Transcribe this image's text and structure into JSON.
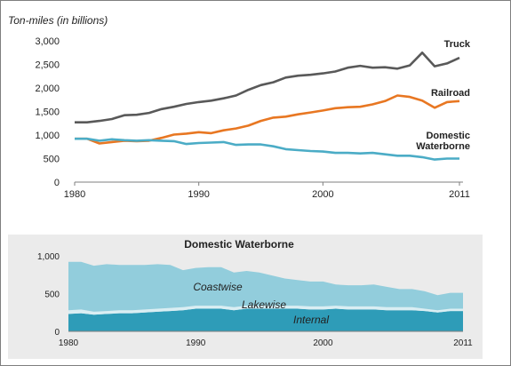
{
  "chart_data": [
    {
      "type": "line",
      "title": "",
      "ylabel": "Ton-miles (in billions)",
      "xlabel": "",
      "x": [
        1980,
        1981,
        1982,
        1983,
        1984,
        1985,
        1986,
        1987,
        1988,
        1989,
        1990,
        1991,
        1992,
        1993,
        1994,
        1995,
        1996,
        1997,
        1998,
        1999,
        2000,
        2001,
        2002,
        2003,
        2004,
        2005,
        2006,
        2007,
        2008,
        2009,
        2010,
        2011
      ],
      "xticks": [
        "1980",
        "1990",
        "2000",
        "2011"
      ],
      "xtick_values": [
        1980,
        1990,
        2000,
        2011
      ],
      "ylim": [
        0,
        3000
      ],
      "yticks": [
        "0",
        "500",
        "1,000",
        "1,500",
        "2,000",
        "2,500",
        "3,000"
      ],
      "ytick_values": [
        0,
        500,
        1000,
        1500,
        2000,
        2500,
        3000
      ],
      "grid": false,
      "series": [
        {
          "name": "Truck",
          "color": "#595959",
          "values": [
            1270,
            1270,
            1300,
            1340,
            1420,
            1430,
            1470,
            1550,
            1600,
            1660,
            1700,
            1730,
            1780,
            1840,
            1960,
            2060,
            2120,
            2220,
            2260,
            2280,
            2310,
            2350,
            2430,
            2470,
            2430,
            2440,
            2410,
            2480,
            2750,
            2460,
            2520,
            2640
          ]
        },
        {
          "name": "Railroad",
          "color": "#e87722",
          "values": [
            920,
            920,
            820,
            850,
            880,
            870,
            880,
            940,
            1010,
            1030,
            1060,
            1040,
            1100,
            1140,
            1200,
            1300,
            1370,
            1390,
            1440,
            1480,
            1520,
            1570,
            1590,
            1600,
            1650,
            1720,
            1840,
            1810,
            1730,
            1580,
            1700,
            1720
          ]
        },
        {
          "name": "Domestic Waterborne",
          "label_lines": [
            "Domestic",
            "Waterborne"
          ],
          "color": "#4bacc6",
          "values": [
            920,
            920,
            880,
            910,
            890,
            880,
            890,
            880,
            870,
            810,
            830,
            840,
            850,
            790,
            800,
            800,
            760,
            700,
            680,
            660,
            650,
            620,
            620,
            610,
            620,
            590,
            560,
            560,
            530,
            480,
            500,
            500
          ]
        }
      ]
    },
    {
      "type": "area",
      "title": "Domestic Waterborne",
      "xlabel": "",
      "ylabel": "",
      "x": [
        1980,
        1981,
        1982,
        1983,
        1984,
        1985,
        1986,
        1987,
        1988,
        1989,
        1990,
        1991,
        1992,
        1993,
        1994,
        1995,
        1996,
        1997,
        1998,
        1999,
        2000,
        2001,
        2002,
        2003,
        2004,
        2005,
        2006,
        2007,
        2008,
        2009,
        2010,
        2011
      ],
      "xticks": [
        "1980",
        "1990",
        "2000",
        "2011"
      ],
      "xtick_values": [
        1980,
        1990,
        2000,
        2011
      ],
      "ylim": [
        0,
        1000
      ],
      "yticks": [
        "0",
        "500",
        "1,000"
      ],
      "ytick_values": [
        0,
        500,
        1000
      ],
      "background": "#ebebeb",
      "stacked": true,
      "series": [
        {
          "name": "Internal",
          "color": "#2e9cb8",
          "values": [
            230,
            240,
            220,
            230,
            240,
            240,
            250,
            260,
            270,
            280,
            300,
            300,
            300,
            280,
            300,
            300,
            300,
            300,
            300,
            290,
            290,
            300,
            290,
            290,
            290,
            280,
            280,
            280,
            270,
            250,
            270,
            270
          ]
        },
        {
          "name": "Lakewise",
          "color": "#daeef3",
          "values": [
            50,
            50,
            40,
            40,
            40,
            40,
            40,
            40,
            40,
            40,
            40,
            40,
            40,
            40,
            40,
            40,
            40,
            40,
            40,
            40,
            40,
            40,
            40,
            40,
            40,
            40,
            40,
            40,
            30,
            30,
            30,
            30
          ]
        },
        {
          "name": "Coastwise",
          "color": "#92cddc",
          "values": [
            640,
            630,
            610,
            620,
            600,
            600,
            590,
            590,
            570,
            490,
            500,
            510,
            510,
            460,
            460,
            440,
            400,
            360,
            340,
            330,
            330,
            280,
            280,
            280,
            290,
            270,
            240,
            240,
            230,
            200,
            210,
            210
          ]
        }
      ]
    }
  ]
}
